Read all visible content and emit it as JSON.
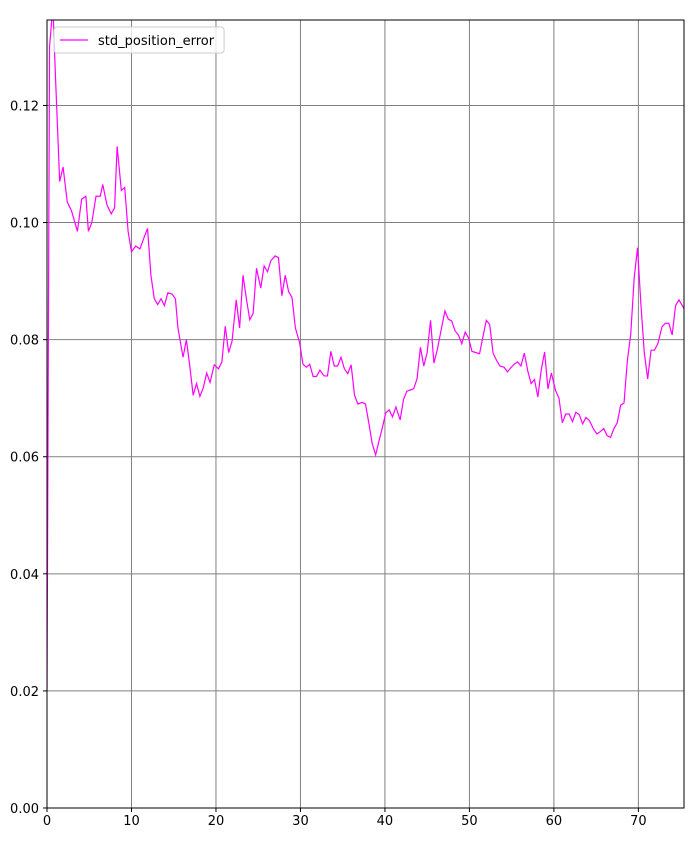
{
  "chart_data": {
    "type": "line",
    "x": [
      0,
      0.3,
      0.7,
      1.0,
      1.5,
      1.9,
      2.4,
      2.9,
      3.6,
      4.1,
      4.6,
      4.9,
      5.3,
      5.8,
      6.3,
      6.6,
      7.1,
      7.6,
      8.0,
      8.3,
      8.8,
      9.2,
      9.6,
      10.0,
      10.5,
      11.0,
      11.5,
      11.9,
      12.3,
      12.7,
      13.1,
      13.5,
      13.9,
      14.3,
      14.8,
      15.2,
      15.5,
      16.1,
      16.5,
      16.9,
      17.3,
      17.7,
      18.1,
      18.5,
      18.9,
      19.3,
      19.8,
      20.3,
      20.7,
      21.1,
      21.5,
      21.9,
      22.4,
      22.8,
      23.2,
      23.6,
      24.0,
      24.4,
      24.8,
      25.3,
      25.7,
      26.1,
      26.5,
      27.0,
      27.4,
      27.8,
      28.2,
      28.6,
      29.0,
      29.4,
      29.9,
      30.3,
      30.7,
      31.1,
      31.5,
      31.9,
      32.3,
      32.8,
      33.2,
      33.6,
      34.0,
      34.4,
      34.8,
      35.2,
      35.6,
      36.0,
      36.4,
      36.8,
      37.3,
      37.7,
      38.1,
      38.5,
      38.9,
      39.3,
      39.7,
      40.1,
      40.5,
      40.9,
      41.3,
      41.8,
      42.2,
      42.6,
      43.0,
      43.4,
      43.8,
      44.2,
      44.6,
      45.0,
      45.4,
      45.8,
      46.2,
      46.7,
      47.1,
      47.5,
      47.9,
      48.3,
      48.7,
      49.1,
      49.5,
      49.9,
      50.3,
      51.2,
      51.6,
      52.0,
      52.4,
      52.8,
      53.2,
      53.6,
      54.1,
      54.5,
      54.9,
      55.3,
      55.7,
      56.1,
      56.5,
      56.9,
      57.3,
      57.7,
      58.1,
      58.5,
      58.9,
      59.3,
      59.7,
      60.2,
      60.6,
      61.0,
      61.4,
      61.8,
      62.2,
      62.6,
      63.0,
      63.4,
      63.8,
      64.2,
      64.7,
      65.1,
      65.5,
      65.9,
      66.3,
      66.7,
      67.1,
      67.5,
      67.9,
      68.3,
      68.7,
      69.1,
      69.5,
      69.9,
      70.3,
      70.7,
      71.1,
      71.5,
      71.9,
      72.3,
      72.8,
      73.2,
      73.6,
      74.0,
      74.4,
      74.8,
      75.4
    ],
    "series": [
      {
        "name": "std_position_error",
        "color": "#ff00ff",
        "values": [
          0.02,
          0.13,
          0.137,
          0.125,
          0.107,
          0.1095,
          0.1035,
          0.102,
          0.0985,
          0.104,
          0.1045,
          0.0985,
          0.1,
          0.1045,
          0.1045,
          0.1065,
          0.103,
          0.1015,
          0.1025,
          0.113,
          0.1055,
          0.106,
          0.0985,
          0.095,
          0.096,
          0.0955,
          0.0975,
          0.099,
          0.091,
          0.087,
          0.086,
          0.087,
          0.0858,
          0.088,
          0.0878,
          0.087,
          0.082,
          0.077,
          0.08,
          0.0755,
          0.0705,
          0.0725,
          0.0703,
          0.0718,
          0.0743,
          0.0727,
          0.0757,
          0.075,
          0.0762,
          0.0823,
          0.0778,
          0.0797,
          0.0868,
          0.082,
          0.091,
          0.087,
          0.0834,
          0.0845,
          0.0922,
          0.0888,
          0.0926,
          0.0916,
          0.0935,
          0.0943,
          0.094,
          0.0875,
          0.091,
          0.0882,
          0.0872,
          0.082,
          0.0795,
          0.0758,
          0.0753,
          0.0758,
          0.0737,
          0.0737,
          0.0748,
          0.0738,
          0.0738,
          0.078,
          0.0755,
          0.0755,
          0.077,
          0.075,
          0.0742,
          0.0757,
          0.0705,
          0.069,
          0.0693,
          0.069,
          0.0657,
          0.0622,
          0.0603,
          0.0627,
          0.065,
          0.0675,
          0.068,
          0.0668,
          0.0685,
          0.0663,
          0.0698,
          0.0712,
          0.0714,
          0.0716,
          0.0733,
          0.0787,
          0.0755,
          0.0778,
          0.0833,
          0.076,
          0.0783,
          0.082,
          0.0849,
          0.0835,
          0.0832,
          0.0815,
          0.0808,
          0.0793,
          0.0813,
          0.0803,
          0.078,
          0.0776,
          0.0805,
          0.0833,
          0.0826,
          0.0777,
          0.0765,
          0.0755,
          0.0753,
          0.0745,
          0.0752,
          0.0758,
          0.0762,
          0.0755,
          0.0777,
          0.0747,
          0.0725,
          0.0732,
          0.0702,
          0.0748,
          0.0779,
          0.0716,
          0.0743,
          0.0713,
          0.07,
          0.0658,
          0.0673,
          0.0673,
          0.066,
          0.0676,
          0.0672,
          0.0656,
          0.0667,
          0.0662,
          0.0647,
          0.0639,
          0.0643,
          0.0648,
          0.0636,
          0.0633,
          0.0648,
          0.0658,
          0.0688,
          0.0692,
          0.0765,
          0.081,
          0.0905,
          0.0957,
          0.086,
          0.0778,
          0.0733,
          0.0782,
          0.0782,
          0.0793,
          0.0822,
          0.0828,
          0.0828,
          0.0808,
          0.0858,
          0.0868,
          0.0853
        ]
      }
    ],
    "xlim": [
      0,
      75.4
    ],
    "ylim": [
      0,
      0.1346
    ],
    "xticks": [
      0,
      10,
      20,
      30,
      40,
      50,
      60,
      70
    ],
    "yticks": [
      {
        "value": 0,
        "label": "0.00"
      },
      0.02,
      0.04,
      0.06,
      0.08,
      {
        "value": 0.1,
        "label": "0.10"
      },
      0.12
    ],
    "grid": true,
    "legend": "upper left"
  }
}
